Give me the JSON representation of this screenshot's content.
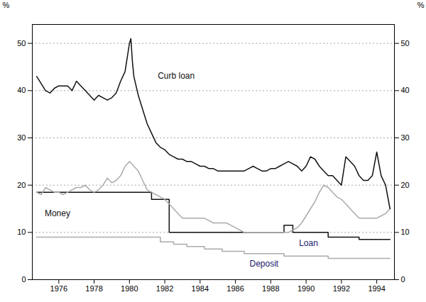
{
  "chart_data": {
    "type": "line",
    "ylabel": "%",
    "y2label": "%",
    "xlim": [
      1974.5,
      1995.0
    ],
    "xticks": [
      1976,
      1978,
      1980,
      1982,
      1984,
      1986,
      1988,
      1990,
      1992,
      1994
    ],
    "ylim": [
      0,
      54
    ],
    "yticks": [
      0,
      10,
      20,
      30,
      40,
      50
    ],
    "y2lim": [
      0,
      54
    ],
    "y2ticks": [
      0,
      10,
      20,
      30,
      40,
      50
    ],
    "grid": true,
    "series": [
      {
        "name": "Curb loan",
        "color": "#111111",
        "x": [
          1974.75,
          1975.0,
          1975.25,
          1975.5,
          1975.75,
          1976.0,
          1976.25,
          1976.5,
          1976.75,
          1977.0,
          1977.25,
          1977.5,
          1977.75,
          1978.0,
          1978.25,
          1978.5,
          1978.75,
          1979.0,
          1979.25,
          1979.5,
          1979.75,
          1980.0,
          1980.08,
          1980.17,
          1980.25,
          1980.5,
          1980.75,
          1981.0,
          1981.25,
          1981.5,
          1981.75,
          1982.0,
          1982.25,
          1982.5,
          1982.75,
          1983.0,
          1983.25,
          1983.5,
          1983.75,
          1984.0,
          1984.25,
          1984.5,
          1984.75,
          1985.0,
          1985.25,
          1985.5,
          1985.75,
          1986.0,
          1986.25,
          1986.5,
          1986.75,
          1987.0,
          1987.25,
          1987.5,
          1987.75,
          1988.0,
          1988.25,
          1988.5,
          1988.75,
          1989.0,
          1989.25,
          1989.5,
          1989.75,
          1990.0,
          1990.25,
          1990.5,
          1990.75,
          1991.0,
          1991.25,
          1991.5,
          1991.75,
          1992.0,
          1992.25,
          1992.5,
          1992.75,
          1993.0,
          1993.25,
          1993.5,
          1993.75,
          1994.0,
          1994.25,
          1994.5,
          1994.75
        ],
        "values": [
          43,
          41.5,
          40,
          39.5,
          40.5,
          41,
          41,
          41,
          40,
          42,
          41,
          40,
          39,
          38,
          39,
          38.5,
          38,
          38.5,
          39.5,
          42,
          44,
          50,
          51,
          46,
          43,
          39,
          36,
          33,
          31,
          29,
          28,
          27.5,
          26.5,
          26,
          25.5,
          25.5,
          25,
          25,
          24.5,
          24,
          24,
          23.5,
          23.5,
          23,
          23,
          23,
          23,
          23,
          23,
          23,
          23.5,
          24,
          23.5,
          23,
          23,
          23.5,
          23.5,
          24,
          24.5,
          25,
          24.5,
          24,
          23,
          24,
          26,
          25.5,
          24,
          23,
          22,
          22,
          21,
          20,
          26,
          25,
          24,
          22,
          21,
          21,
          22,
          27,
          22,
          20,
          15
        ]
      },
      {
        "name": "Money",
        "color": "#aaaaaa",
        "x": [
          1974.75,
          1975.0,
          1975.08,
          1975.17,
          1975.25,
          1975.5,
          1975.75,
          1976.0,
          1976.25,
          1976.5,
          1976.75,
          1977.0,
          1977.25,
          1977.5,
          1977.75,
          1978.0,
          1978.25,
          1978.5,
          1978.75,
          1979.0,
          1979.25,
          1979.5,
          1979.75,
          1980.0,
          1980.25,
          1980.5,
          1980.75,
          1981.0,
          1981.25,
          1981.5,
          1981.75,
          1982.0,
          1982.25,
          1982.5,
          1982.75,
          1983.0,
          1983.25,
          1983.5,
          1983.75,
          1984.0,
          1984.25,
          1984.5,
          1984.75,
          1985.0,
          1985.25,
          1985.5,
          1985.75,
          1986.0,
          1986.25,
          1986.5,
          1986.75,
          1987.0,
          1987.25,
          1987.5,
          1987.75,
          1988.0,
          1988.25,
          1988.5,
          1988.75,
          1989.0,
          1989.25,
          1989.5,
          1989.75,
          1990.0,
          1990.25,
          1990.5,
          1990.75,
          1991.0,
          1991.25,
          1991.5,
          1991.75,
          1992.0,
          1992.25,
          1992.5,
          1992.75,
          1993.0,
          1993.25,
          1993.5,
          1993.75,
          1994.0,
          1994.25,
          1994.5,
          1994.75
        ],
        "values": [
          18.5,
          18,
          18.5,
          19,
          19.5,
          19,
          18.5,
          18.5,
          18,
          18.5,
          19,
          19.5,
          19.5,
          20,
          19,
          18.5,
          19,
          20,
          21.5,
          20.5,
          21,
          22,
          24,
          25,
          24,
          23,
          21,
          19,
          18.5,
          18,
          17.5,
          17,
          16,
          15,
          14,
          13,
          13,
          13,
          13,
          13,
          13,
          12.5,
          12,
          12,
          12,
          12,
          11.5,
          11,
          10.5,
          10,
          10,
          10,
          10,
          10,
          10,
          10,
          10,
          10,
          10,
          10,
          10.5,
          11,
          12,
          13.5,
          15,
          16.5,
          18.5,
          20,
          19.5,
          18.5,
          17.5,
          17,
          16,
          15,
          14,
          13,
          13,
          13,
          13,
          13,
          13.5,
          14,
          15
        ]
      },
      {
        "name": "Loan",
        "color": "#111111",
        "x": [
          1974.75,
          1981.25,
          1981.25,
          1982.25,
          1982.25,
          1988.75,
          1988.75,
          1989.25,
          1989.25,
          1991.25,
          1991.25,
          1993.0,
          1993.0,
          1994.75
        ],
        "values": [
          18.5,
          18.5,
          17.0,
          17.0,
          10.0,
          10.0,
          11.5,
          11.5,
          10.0,
          10.0,
          9.0,
          9.0,
          8.5,
          8.5
        ]
      },
      {
        "name": "Deposit",
        "color": "#aaaaaa",
        "x": [
          1974.75,
          1981.75,
          1981.75,
          1982.5,
          1982.5,
          1983.25,
          1983.25,
          1984.25,
          1984.25,
          1985.25,
          1985.25,
          1986.5,
          1986.5,
          1988.75,
          1988.75,
          1991.25,
          1991.25,
          1994.75
        ],
        "values": [
          9.0,
          9.0,
          8.0,
          8.0,
          7.5,
          7.5,
          7.0,
          7.0,
          6.5,
          6.5,
          6.0,
          6.0,
          5.5,
          5.5,
          5.0,
          5.0,
          4.5,
          4.5
        ]
      }
    ],
    "annotations": [
      {
        "text": "Curb loan",
        "x": 1981.6,
        "y": 42.5,
        "color": "#111111"
      },
      {
        "text": "Money",
        "x": 1975.2,
        "y": 13.5,
        "color": "#111111"
      },
      {
        "text": "Loan",
        "x": 1989.6,
        "y": 7.2,
        "color": "#1a1a6e"
      },
      {
        "text": "Deposit",
        "x": 1986.8,
        "y": 2.8,
        "color": "#1a1a6e"
      }
    ]
  }
}
